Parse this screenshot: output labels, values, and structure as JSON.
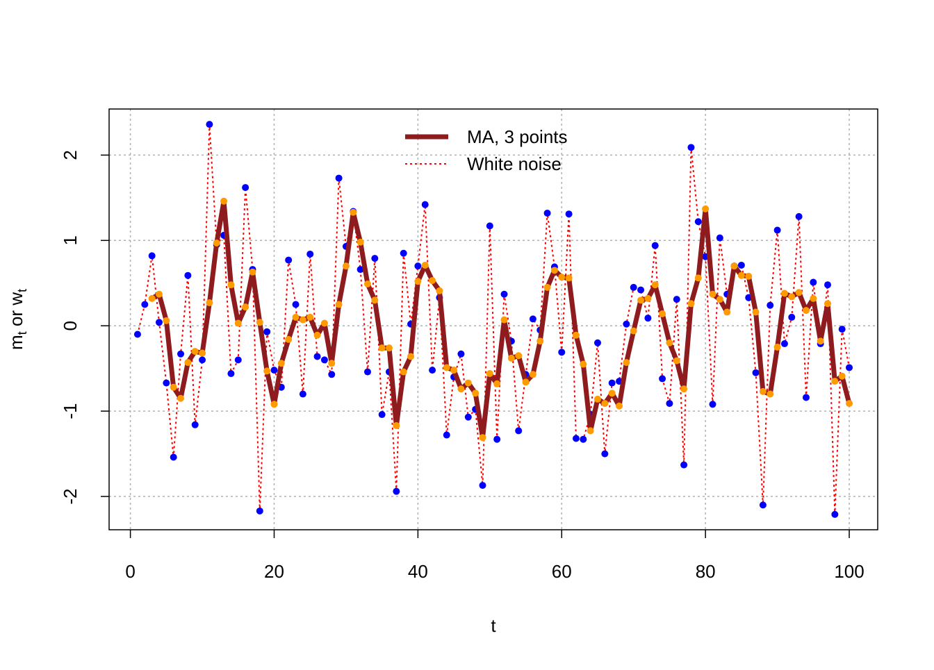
{
  "chart_data": {
    "type": "line",
    "xlabel": "t",
    "ylabel": [
      "m",
      "t",
      " or w",
      "t"
    ],
    "x": [
      1,
      2,
      3,
      4,
      5,
      6,
      7,
      8,
      9,
      10,
      11,
      12,
      13,
      14,
      15,
      16,
      17,
      18,
      19,
      20,
      21,
      22,
      23,
      24,
      25,
      26,
      27,
      28,
      29,
      30,
      31,
      32,
      33,
      34,
      35,
      36,
      37,
      38,
      39,
      40,
      41,
      42,
      43,
      44,
      45,
      46,
      47,
      48,
      49,
      50,
      51,
      52,
      53,
      54,
      55,
      56,
      57,
      58,
      59,
      60,
      61,
      62,
      63,
      64,
      65,
      66,
      67,
      68,
      69,
      70,
      71,
      72,
      73,
      74,
      75,
      76,
      77,
      78,
      79,
      80,
      81,
      82,
      83,
      84,
      85,
      86,
      87,
      88,
      89,
      90,
      91,
      92,
      93,
      94,
      95,
      96,
      97,
      98,
      99,
      100
    ],
    "series": [
      {
        "name": "MA, 3 points",
        "color": "#8e1b1e",
        "marker_color": "#ff9a00",
        "line_style": "solid",
        "values": [
          null,
          null,
          0.32,
          0.37,
          0.06,
          -0.72,
          -0.85,
          -0.43,
          -0.3,
          -0.32,
          0.27,
          0.97,
          1.46,
          0.48,
          0.03,
          0.22,
          0.63,
          0.04,
          -0.53,
          -0.92,
          -0.44,
          -0.16,
          0.1,
          0.07,
          0.1,
          -0.11,
          0.03,
          -0.44,
          0.25,
          0.7,
          1.33,
          0.98,
          0.49,
          0.3,
          -0.26,
          -0.26,
          -1.17,
          -0.54,
          -0.36,
          0.52,
          0.71,
          0.53,
          0.41,
          -0.49,
          -0.52,
          -0.74,
          -0.67,
          -0.79,
          -1.31,
          -0.56,
          -0.68,
          0.07,
          -0.38,
          -0.35,
          -0.66,
          -0.57,
          -0.18,
          0.45,
          0.65,
          0.57,
          0.56,
          -0.11,
          -0.45,
          -1.23,
          -0.86,
          -0.91,
          -0.79,
          -0.94,
          -0.43,
          -0.06,
          0.3,
          0.32,
          0.48,
          0.14,
          -0.2,
          -0.41,
          -0.74,
          0.26,
          0.56,
          1.37,
          0.37,
          0.31,
          0.16,
          0.7,
          0.59,
          0.58,
          0.16,
          -0.77,
          -0.8,
          -0.25,
          0.38,
          0.34,
          0.39,
          0.18,
          0.32,
          -0.18,
          0.26,
          -0.65,
          -0.59,
          -0.91
        ]
      },
      {
        "name": "White noise",
        "color": "#ff0000",
        "marker_color": "#0000ff",
        "line_style": "dotted",
        "values": [
          -0.1,
          0.25,
          0.82,
          0.04,
          -0.67,
          -1.54,
          -0.33,
          0.59,
          -1.16,
          -0.4,
          2.36,
          0.95,
          1.06,
          -0.56,
          -0.4,
          1.62,
          0.66,
          -2.17,
          -0.07,
          -0.52,
          -0.72,
          0.77,
          0.25,
          -0.8,
          0.84,
          -0.36,
          -0.4,
          -0.57,
          1.73,
          0.93,
          1.34,
          0.66,
          -0.54,
          0.79,
          -1.04,
          -0.54,
          -1.94,
          0.85,
          0.02,
          0.7,
          1.42,
          -0.52,
          0.33,
          -1.28,
          -0.6,
          -0.33,
          -1.07,
          -0.98,
          -1.87,
          1.17,
          -1.33,
          0.37,
          -0.18,
          -1.23,
          -0.57,
          0.08,
          -0.05,
          1.32,
          0.69,
          -0.31,
          1.31,
          -1.32,
          -1.33,
          -1.04,
          -0.2,
          -1.5,
          -0.67,
          -0.65,
          0.02,
          0.45,
          0.42,
          0.09,
          0.94,
          -0.62,
          -0.91,
          0.31,
          -1.63,
          2.09,
          1.22,
          0.81,
          -0.92,
          1.03,
          0.37,
          0.7,
          0.71,
          0.33,
          -0.55,
          -2.1,
          0.24,
          1.12,
          -0.21,
          0.1,
          1.28,
          -0.84,
          0.51,
          -0.21,
          0.48,
          -2.21,
          -0.04,
          -0.49
        ]
      }
    ],
    "xlim": [
      -2.96,
      103.96
    ],
    "ylim": [
      -2.39,
      2.54
    ],
    "xticks": [
      0,
      20,
      40,
      60,
      80,
      100
    ],
    "yticks": [
      -2,
      -1,
      0,
      1,
      2
    ],
    "grid": true,
    "legend": "top"
  }
}
